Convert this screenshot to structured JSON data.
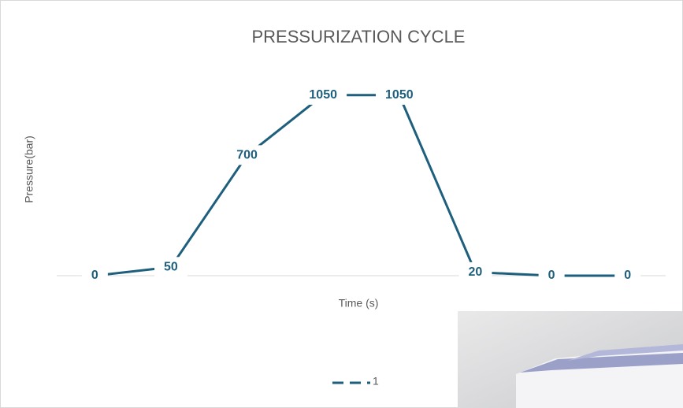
{
  "chart_data": {
    "type": "line",
    "title": "PRESSURIZATION CYCLE",
    "x_label": "Time (s)",
    "y_label": "Pressure(bar)",
    "categories": [
      null,
      null,
      null,
      null,
      null,
      null,
      null,
      null
    ],
    "series": [
      {
        "name": "1",
        "color": "#1d5f7c",
        "values": [
          0,
          50,
          700,
          1050,
          1050,
          20,
          0,
          0
        ]
      }
    ],
    "ylim": [
      0,
      1200
    ]
  }
}
